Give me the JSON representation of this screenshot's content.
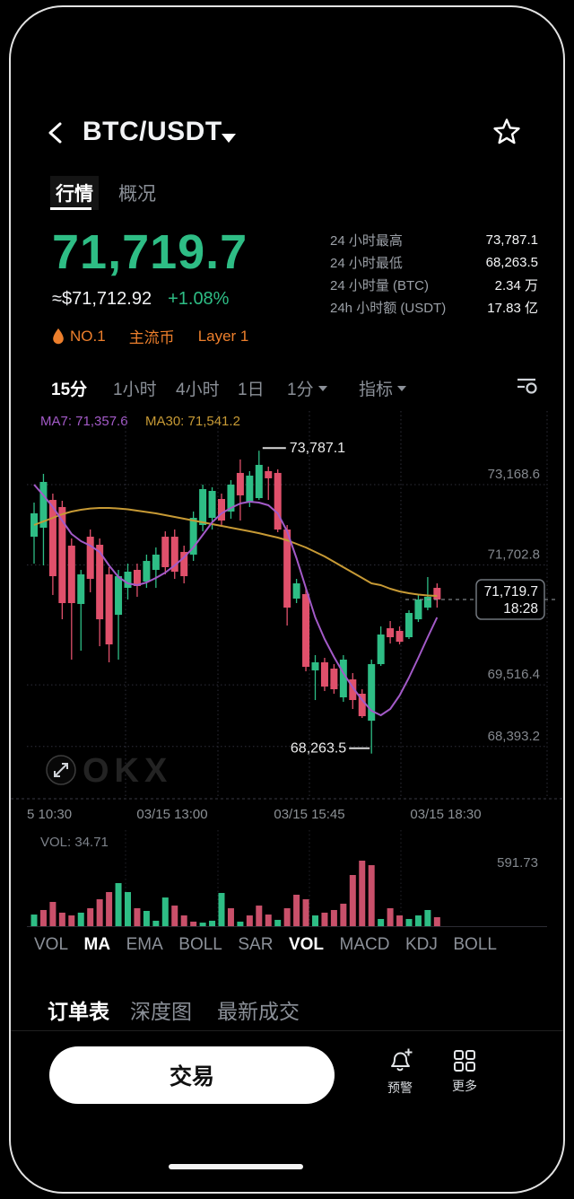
{
  "header": {
    "title": "BTC/USDT"
  },
  "tabs": [
    {
      "label": "行情",
      "active": true
    },
    {
      "label": "概况",
      "active": false
    }
  ],
  "price": {
    "last": "71,719.7",
    "approx_usd": "≈$71,712.92",
    "change_pct": "+1.08%"
  },
  "badges": [
    {
      "icon": "flame",
      "label": "NO.1"
    },
    {
      "label": "主流币"
    },
    {
      "label": "Layer 1"
    }
  ],
  "stats": [
    {
      "label": "24 小时最高",
      "value": "73,787.1"
    },
    {
      "label": "24 小时最低",
      "value": "68,263.5"
    },
    {
      "label": "24 小时量 (BTC)",
      "value": "2.34 万"
    },
    {
      "label": "24h 小时额 (USDT)",
      "value": "17.83 亿"
    }
  ],
  "toolbar": {
    "timeframes": [
      {
        "label": "15分",
        "active": true
      },
      {
        "label": "1小时",
        "active": false
      },
      {
        "label": "4小时",
        "active": false
      },
      {
        "label": "1日",
        "active": false
      },
      {
        "label": "1分",
        "active": false,
        "caret": true
      },
      {
        "label": "指标",
        "active": false,
        "caret": true
      }
    ]
  },
  "chart": {
    "ma7_label": "MA7: 71,357.6",
    "ma30_label": "MA30: 71,541.2",
    "high_label": "73,787.1",
    "low_label": "68,263.5",
    "last_price_label": "71,719.7",
    "last_time_label": "18:28",
    "watermark": "OKX",
    "y_labels": [
      {
        "text": "73,168.6",
        "price": 73168.6
      },
      {
        "text": "71,702.8",
        "price": 71702.8
      },
      {
        "text": "69,516.4",
        "price": 69516.4
      },
      {
        "text": "68,393.2",
        "price": 68393.2
      }
    ],
    "x_labels": [
      "5 10:30",
      "03/15 13:00",
      "03/15 15:45",
      "03/15 18:30"
    ]
  },
  "chart_data": {
    "type": "candlestick",
    "timeframe": "15分",
    "price_top": 74560,
    "price_bottom": 67440,
    "high": 73787.1,
    "low": 68263.5,
    "candles": [
      [
        72219,
        72841,
        71728,
        72645
      ],
      [
        72383,
        73365,
        71696,
        73218
      ],
      [
        72890,
        73005,
        71156,
        71499
      ],
      [
        72760,
        72874,
        70713,
        71008
      ],
      [
        72056,
        72187,
        69977,
        71008
      ],
      [
        70992,
        71614,
        70140,
        71532
      ],
      [
        72219,
        72350,
        71205,
        71450
      ],
      [
        72072,
        72187,
        70222,
        70713
      ],
      [
        71532,
        71663,
        69928,
        70255
      ],
      [
        70795,
        71614,
        69977,
        71499
      ],
      [
        71286,
        71728,
        71073,
        71581
      ],
      [
        71614,
        71728,
        71123,
        71319
      ],
      [
        71401,
        71892,
        71286,
        71777
      ],
      [
        71614,
        72023,
        71286,
        71892
      ],
      [
        72219,
        72317,
        71532,
        71663
      ],
      [
        72219,
        72350,
        71450,
        71581
      ],
      [
        71941,
        72056,
        71368,
        71499
      ],
      [
        71892,
        72678,
        71777,
        72563
      ],
      [
        72432,
        73169,
        72317,
        73087
      ],
      [
        72563,
        73120,
        72350,
        73054
      ],
      [
        72907,
        73005,
        72416,
        72514
      ],
      [
        72678,
        73251,
        72547,
        73169
      ],
      [
        73382,
        73627,
        72514,
        72973
      ],
      [
        72841,
        73415,
        72760,
        73333
      ],
      [
        72923,
        73787.1,
        72890,
        73529
      ],
      [
        73415,
        73497,
        72890,
        73284
      ],
      [
        73382,
        73447,
        72301,
        72350
      ],
      [
        72350,
        72432,
        70599,
        70926
      ],
      [
        71090,
        71450,
        71008,
        71368
      ],
      [
        71172,
        71286,
        69764,
        69846
      ],
      [
        69781,
        70059,
        69240,
        69928
      ],
      [
        69928,
        70010,
        69404,
        69486
      ],
      [
        69813,
        69895,
        69355,
        69437
      ],
      [
        69289,
        70059,
        69208,
        69977
      ],
      [
        69617,
        69732,
        69077,
        69240
      ],
      [
        69355,
        69437,
        68913,
        68946
      ],
      [
        68864,
        69977,
        68263.5,
        69895
      ],
      [
        69895,
        70583,
        69863,
        70435
      ],
      [
        70550,
        70681,
        70272,
        70386
      ],
      [
        70501,
        70583,
        70255,
        70304
      ],
      [
        70386,
        70877,
        70353,
        70828
      ],
      [
        70713,
        71172,
        70664,
        71073
      ],
      [
        70926,
        71483,
        70877,
        71123
      ],
      [
        71286,
        71368,
        70926,
        71073
      ]
    ],
    "ma7": [
      73169,
      72972,
      72760,
      72514,
      72269,
      72138,
      72056,
      71941,
      71696,
      71483,
      71368,
      71336,
      71385,
      71466,
      71565,
      71696,
      71843,
      72023,
      72252,
      72481,
      72645,
      72743,
      72825,
      72858,
      72841,
      72792,
      72645,
      72317,
      71826,
      71286,
      70746,
      70353,
      70026,
      69731,
      69469,
      69240,
      69044,
      68962,
      69077,
      69322,
      69650,
      70010,
      70386,
      70746
    ],
    "ma30": [
      72432,
      72497,
      72563,
      72628,
      72677,
      72710,
      72734,
      72743,
      72743,
      72734,
      72718,
      72694,
      72669,
      72645,
      72612,
      72579,
      72547,
      72514,
      72481,
      72448,
      72416,
      72383,
      72350,
      72317,
      72284,
      72243,
      72203,
      72154,
      72088,
      72023,
      71941,
      71859,
      71761,
      71663,
      71565,
      71466,
      71368,
      71336,
      71270,
      71221,
      71188,
      71164,
      71147,
      71139
    ],
    "volume_max": 591.73,
    "volumes": [
      105,
      146,
      219,
      122,
      97,
      122,
      162,
      243,
      308,
      389,
      308,
      162,
      138,
      49,
      259,
      186,
      97,
      41,
      32,
      49,
      300,
      162,
      41,
      97,
      186,
      105,
      57,
      162,
      284,
      243,
      97,
      122,
      146,
      203,
      462,
      591.73,
      551,
      65,
      162,
      97,
      65,
      97,
      146,
      81
    ],
    "volume_colors": [
      "g",
      "r",
      "r",
      "r",
      "r",
      "g",
      "r",
      "r",
      "r",
      "g",
      "g",
      "r",
      "g",
      "g",
      "g",
      "r",
      "r",
      "r",
      "g",
      "g",
      "g",
      "r",
      "g",
      "r",
      "r",
      "r",
      "g",
      "r",
      "r",
      "r",
      "g",
      "r",
      "r",
      "r",
      "r",
      "r",
      "r",
      "g",
      "r",
      "r",
      "g",
      "g",
      "g",
      "r"
    ]
  },
  "volume_pane": {
    "label": "VOL: 34.71",
    "axis_max": "591.73"
  },
  "indicator_tabs": [
    {
      "label": "VOL",
      "active": false
    },
    {
      "label": "MA",
      "active": true
    },
    {
      "label": "EMA",
      "active": false
    },
    {
      "label": "BOLL",
      "active": false
    },
    {
      "label": "SAR",
      "active": false
    },
    {
      "label": "VOL",
      "active": true
    },
    {
      "label": "MACD",
      "active": false
    },
    {
      "label": "KDJ",
      "active": false
    },
    {
      "label": "BOLL",
      "active": false
    }
  ],
  "order_tabs": [
    {
      "label": "订单表",
      "active": true
    },
    {
      "label": "深度图",
      "active": false
    },
    {
      "label": "最新成交",
      "active": false
    }
  ],
  "bottom_bar": {
    "trade_label": "交易",
    "alert_label": "预警",
    "more_label": "更多"
  },
  "colors": {
    "green": "#2ebd85",
    "red": "#e0506b",
    "orange": "#ed7f2c",
    "purple": "#a35ac8",
    "yellow": "#c79a35",
    "grid": "#2e2e3a",
    "axis_text": "#84888e"
  }
}
